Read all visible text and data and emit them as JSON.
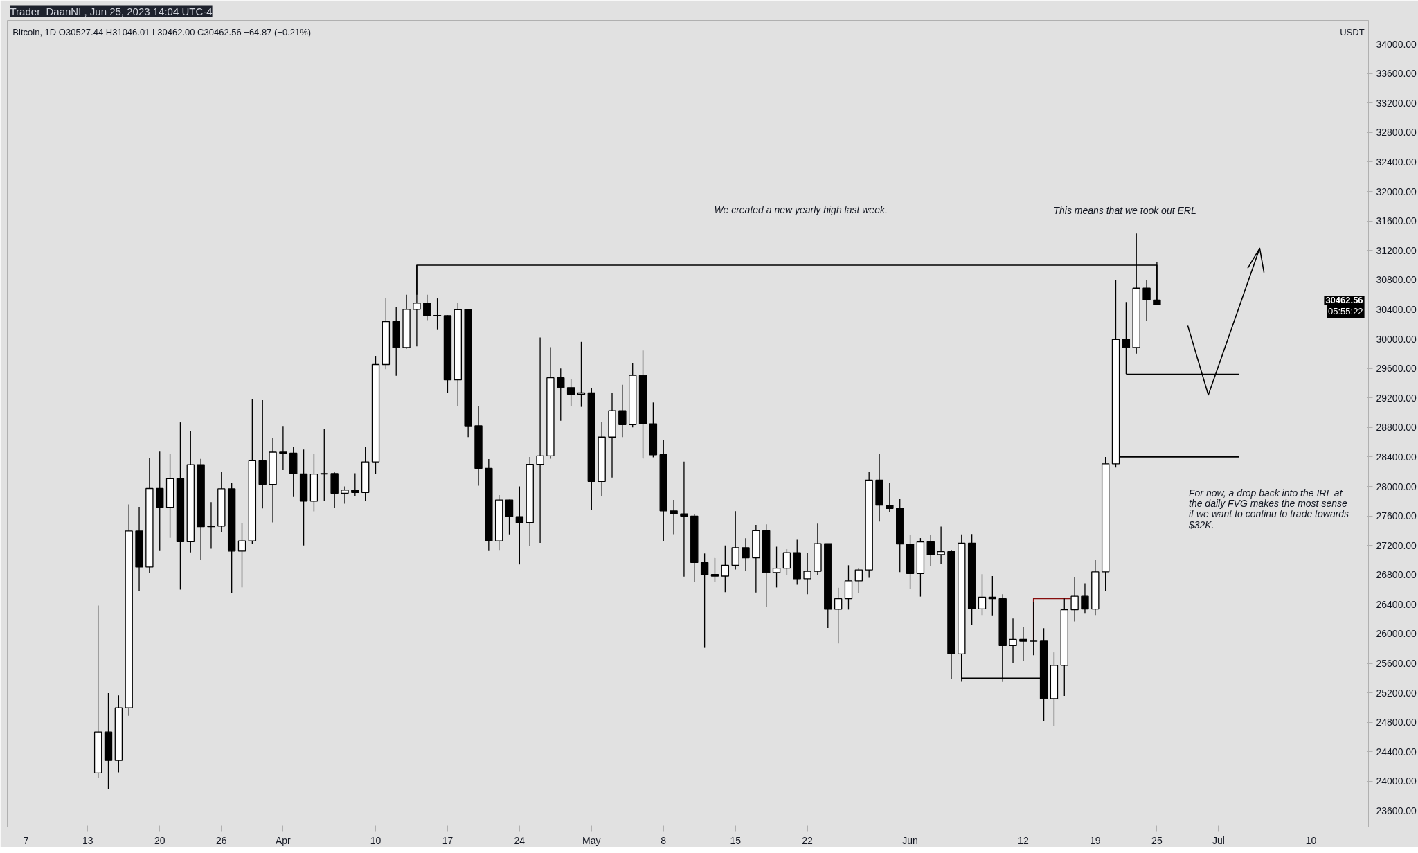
{
  "chart_data": {
    "type": "candlestick",
    "title": "Bitcoin, 1D  O30527.44  H31046.01  L30462.00  C30462.56  −64.87 (−0.21%)",
    "subtitle": "Trader_DaanNL, Jun 25, 2023 14:04 UTC-4",
    "ylabel": "USDT",
    "x": [
      "2023-03-14",
      "2023-03-15",
      "2023-03-16",
      "2023-03-17",
      "2023-03-18",
      "2023-03-19",
      "2023-03-20",
      "2023-03-21",
      "2023-03-22",
      "2023-03-23",
      "2023-03-24",
      "2023-03-25",
      "2023-03-26",
      "2023-03-27",
      "2023-03-28",
      "2023-03-29",
      "2023-03-30",
      "2023-03-31",
      "2023-04-01",
      "2023-04-02",
      "2023-04-03",
      "2023-04-04",
      "2023-04-05",
      "2023-04-06",
      "2023-04-07",
      "2023-04-08",
      "2023-04-09",
      "2023-04-10",
      "2023-04-11",
      "2023-04-12",
      "2023-04-13",
      "2023-04-14",
      "2023-04-15",
      "2023-04-16",
      "2023-04-17",
      "2023-04-18",
      "2023-04-19",
      "2023-04-20",
      "2023-04-21",
      "2023-04-22",
      "2023-04-23",
      "2023-04-24",
      "2023-04-25",
      "2023-04-26",
      "2023-04-27",
      "2023-04-28",
      "2023-04-29",
      "2023-04-30",
      "2023-05-01",
      "2023-05-02",
      "2023-05-03",
      "2023-05-04",
      "2023-05-05",
      "2023-05-06",
      "2023-05-07",
      "2023-05-08",
      "2023-05-09",
      "2023-05-10",
      "2023-05-11",
      "2023-05-12",
      "2023-05-13",
      "2023-05-14",
      "2023-05-15",
      "2023-05-16",
      "2023-05-17",
      "2023-05-18",
      "2023-05-19",
      "2023-05-20",
      "2023-05-21",
      "2023-05-22",
      "2023-05-23",
      "2023-05-24",
      "2023-05-25",
      "2023-05-26",
      "2023-05-27",
      "2023-05-28",
      "2023-05-29",
      "2023-05-30",
      "2023-05-31",
      "2023-06-01",
      "2023-06-02",
      "2023-06-03",
      "2023-06-04",
      "2023-06-05",
      "2023-06-06",
      "2023-06-07",
      "2023-06-08",
      "2023-06-09",
      "2023-06-10",
      "2023-06-11",
      "2023-06-12",
      "2023-06-13",
      "2023-06-14",
      "2023-06-15",
      "2023-06-16",
      "2023-06-17",
      "2023-06-18",
      "2023-06-19",
      "2023-06-20",
      "2023-06-21",
      "2023-06-22",
      "2023-06-23",
      "2023-06-24",
      "2023-06-25"
    ],
    "ohlc": [
      [
        24113,
        26386,
        24050,
        24670
      ],
      [
        24670,
        25196,
        23896,
        24285
      ],
      [
        24285,
        25167,
        24123,
        24998
      ],
      [
        24998,
        27756,
        24890,
        27395
      ],
      [
        27395,
        27724,
        26578,
        26907
      ],
      [
        26907,
        28390,
        26827,
        27972
      ],
      [
        27972,
        28472,
        27124,
        27717
      ],
      [
        27717,
        28438,
        27303,
        28105
      ],
      [
        28105,
        28868,
        26601,
        27250
      ],
      [
        27250,
        28752,
        27105,
        28295
      ],
      [
        28295,
        28374,
        27000,
        27454
      ],
      [
        27454,
        27787,
        27156,
        27462
      ],
      [
        27462,
        28194,
        27386,
        27968
      ],
      [
        27968,
        28044,
        26552,
        27124
      ],
      [
        27124,
        27500,
        26631,
        27261
      ],
      [
        27261,
        29184,
        27220,
        28348
      ],
      [
        28348,
        29170,
        27701,
        28028
      ],
      [
        28028,
        28656,
        27511,
        28465
      ],
      [
        28465,
        28819,
        28220,
        28452
      ],
      [
        28452,
        28530,
        27856,
        28171
      ],
      [
        28171,
        28500,
        27200,
        27800
      ],
      [
        27800,
        28444,
        27662,
        28168
      ],
      [
        28168,
        28775,
        27805,
        28175
      ],
      [
        28175,
        28190,
        27711,
        27907
      ],
      [
        27907,
        28000,
        27766,
        27950
      ],
      [
        27950,
        28178,
        27870,
        27917
      ],
      [
        27917,
        28530,
        27800,
        28333
      ],
      [
        28333,
        29770,
        28170,
        29653
      ],
      [
        29653,
        30550,
        29590,
        30235
      ],
      [
        30235,
        30436,
        29500,
        29884
      ],
      [
        29884,
        30600,
        29870,
        30400
      ],
      [
        30400,
        31000,
        29900,
        30485
      ],
      [
        30485,
        30600,
        30253,
        30318
      ],
      [
        30318,
        30549,
        30130,
        30315
      ],
      [
        30315,
        30320,
        29266,
        29445
      ],
      [
        29445,
        30485,
        29087,
        30397
      ],
      [
        30397,
        30410,
        28669,
        28822
      ],
      [
        28822,
        29095,
        28010,
        28245
      ],
      [
        28245,
        28371,
        27125,
        27262
      ],
      [
        27262,
        27882,
        27130,
        27816
      ],
      [
        27816,
        27820,
        27350,
        27590
      ],
      [
        27590,
        28000,
        26942,
        27510
      ],
      [
        27510,
        28400,
        27192,
        28300
      ],
      [
        28300,
        30020,
        27235,
        28415
      ],
      [
        28415,
        29887,
        28375,
        29473
      ],
      [
        29473,
        29599,
        28891,
        29340
      ],
      [
        29340,
        29460,
        29088,
        29249
      ],
      [
        29249,
        29960,
        29079,
        29268
      ],
      [
        29268,
        29338,
        27680,
        28068
      ],
      [
        28068,
        28879,
        27872,
        28669
      ],
      [
        28669,
        29266,
        28119,
        29026
      ],
      [
        29026,
        29379,
        28669,
        28838
      ],
      [
        28838,
        29677,
        28800,
        29506
      ],
      [
        29506,
        29843,
        28378,
        28849
      ],
      [
        28849,
        29138,
        28395,
        28430
      ],
      [
        28430,
        28631,
        27262,
        27668
      ],
      [
        27668,
        27818,
        27353,
        27628
      ],
      [
        27628,
        28336,
        26777,
        27598
      ],
      [
        27598,
        27630,
        26702,
        26968
      ],
      [
        26968,
        27091,
        25811,
        26805
      ],
      [
        26805,
        27030,
        26700,
        26784
      ],
      [
        26784,
        27200,
        26566,
        26930
      ],
      [
        26930,
        27664,
        26874,
        27170
      ],
      [
        27170,
        27299,
        26852,
        27033
      ],
      [
        27033,
        27480,
        26560,
        27400
      ],
      [
        27400,
        27485,
        26361,
        26832
      ],
      [
        26832,
        27183,
        26630,
        26890
      ],
      [
        26890,
        27150,
        26800,
        27102
      ],
      [
        27102,
        27277,
        26666,
        26747
      ],
      [
        26747,
        27099,
        26538,
        26849
      ],
      [
        26849,
        27495,
        26798,
        27225
      ],
      [
        27225,
        27225,
        26080,
        26334
      ],
      [
        26334,
        26626,
        25871,
        26477
      ],
      [
        26477,
        26931,
        26330,
        26719
      ],
      [
        26719,
        26888,
        26554,
        26868
      ],
      [
        26868,
        28193,
        26760,
        28085
      ],
      [
        28085,
        28447,
        27524,
        27745
      ],
      [
        27745,
        28046,
        27655,
        27702
      ],
      [
        27702,
        27835,
        26839,
        27219
      ],
      [
        27219,
        27346,
        26605,
        26819
      ],
      [
        26819,
        27300,
        26506,
        27249
      ],
      [
        27249,
        27342,
        26916,
        27075
      ],
      [
        27075,
        27455,
        26951,
        27116
      ],
      [
        27116,
        27133,
        25388,
        25729
      ],
      [
        25729,
        27350,
        25351,
        27230
      ],
      [
        27230,
        27355,
        26118,
        26339
      ],
      [
        26339,
        26810,
        26256,
        26498
      ],
      [
        26498,
        26783,
        26251,
        26477
      ],
      [
        26477,
        26538,
        25350,
        25841
      ],
      [
        25841,
        26210,
        25607,
        25925
      ],
      [
        25925,
        26099,
        25638,
        25901
      ],
      [
        25901,
        26433,
        25712,
        25902
      ],
      [
        25902,
        26077,
        24820,
        25123
      ],
      [
        25123,
        25750,
        24756,
        25575
      ],
      [
        25575,
        26478,
        25160,
        26327
      ],
      [
        26327,
        26769,
        26170,
        26510
      ],
      [
        26510,
        26686,
        26275,
        26336
      ],
      [
        26336,
        27000,
        26256,
        26841
      ],
      [
        26841,
        28400,
        26586,
        28307
      ],
      [
        28307,
        30800,
        28257,
        29993
      ],
      [
        29993,
        30500,
        29525,
        29884
      ],
      [
        29884,
        31431,
        29800,
        30688
      ],
      [
        30688,
        30800,
        30250,
        30527
      ],
      [
        30527.44,
        31046.01,
        30462.0,
        30462.56
      ]
    ],
    "series": [
      {
        "type": "line",
        "color": "#000000",
        "x": [
          "2023-04-14",
          "2023-04-14",
          "2023-06-25",
          "2023-06-25"
        ],
        "values": [
          30600,
          31000,
          31000,
          30530
        ]
      },
      {
        "type": "line",
        "color": "#000000",
        "x": [
          "2023-06-22",
          "2023-07-03"
        ],
        "values": [
          29520,
          29520
        ]
      },
      {
        "type": "line",
        "color": "#000000",
        "x": [
          "2023-06-21T09:00",
          "2023-07-03"
        ],
        "values": [
          28400,
          28400
        ]
      },
      {
        "type": "line",
        "color": "#000000",
        "x": [
          "2023-06-06",
          "2023-06-06",
          "2023-06-10",
          "2023-06-10",
          "2023-06-10",
          "2023-06-13T15:00"
        ],
        "values": [
          25730,
          25400,
          25400,
          25840,
          25400,
          25400
        ]
      },
      {
        "type": "line",
        "color": "#880e0e",
        "x": [
          "2023-06-13",
          "2023-06-13",
          "2023-06-16T15:00"
        ],
        "values": [
          25900,
          26480,
          26480
        ]
      },
      {
        "type": "line",
        "color": "#000000",
        "x": [
          "2023-06-28",
          "2023-06-30",
          "2023-07-05"
        ],
        "values": [
          30180,
          29240,
          31230
        ]
      },
      {
        "type": "line",
        "color": "#000000",
        "x": [
          "2023-07-03T20:00",
          "2023-07-05",
          "2023-07-05T10:00"
        ],
        "values": [
          30960,
          31230,
          30900
        ]
      }
    ],
    "annotations": [
      "We created a new yearly high last week.",
      "This means that we took out ERL",
      "For now, a drop back into the IRL at\nthe daily FVG makes the most sense\nif we want to continu to trade towards\n$32K.",
      "30462.56",
      "05:55:22"
    ],
    "xlim": [
      "2023-03-05T04:00",
      "2023-07-15T14:00"
    ],
    "xticks": [
      {
        "value": "2023-03-07",
        "label": "7"
      },
      {
        "value": "2023-03-13",
        "label": "13"
      },
      {
        "value": "2023-03-20",
        "label": "20"
      },
      {
        "value": "2023-03-26",
        "label": "26"
      },
      {
        "value": "2023-04-01",
        "label": "Apr"
      },
      {
        "value": "2023-04-10",
        "label": "10"
      },
      {
        "value": "2023-04-17",
        "label": "17"
      },
      {
        "value": "2023-04-24",
        "label": "24"
      },
      {
        "value": "2023-05-01",
        "label": "May"
      },
      {
        "value": "2023-05-08",
        "label": "8"
      },
      {
        "value": "2023-05-15",
        "label": "15"
      },
      {
        "value": "2023-05-22",
        "label": "22"
      },
      {
        "value": "2023-06-01",
        "label": "Jun"
      },
      {
        "value": "2023-06-12",
        "label": "12"
      },
      {
        "value": "2023-06-19",
        "label": "19"
      },
      {
        "value": "2023-06-25",
        "label": "25"
      },
      {
        "value": "2023-07-01",
        "label": "Jul"
      },
      {
        "value": "2023-07-10",
        "label": "10"
      }
    ],
    "ylim": [
      23380,
      34320
    ],
    "yticks": [
      {
        "value": 23600,
        "label": "23600.00"
      },
      {
        "value": 24000,
        "label": "24000.00"
      },
      {
        "value": 24400,
        "label": "24400.00"
      },
      {
        "value": 24800,
        "label": "24800.00"
      },
      {
        "value": 25200,
        "label": "25200.00"
      },
      {
        "value": 25600,
        "label": "25600.00"
      },
      {
        "value": 26000,
        "label": "26000.00"
      },
      {
        "value": 26400,
        "label": "26400.00"
      },
      {
        "value": 26800,
        "label": "26800.00"
      },
      {
        "value": 27200,
        "label": "27200.00"
      },
      {
        "value": 27600,
        "label": "27600.00"
      },
      {
        "value": 28000,
        "label": "28000.00"
      },
      {
        "value": 28400,
        "label": "28400.00"
      },
      {
        "value": 28800,
        "label": "28800.00"
      },
      {
        "value": 29200,
        "label": "29200.00"
      },
      {
        "value": 29600,
        "label": "29600.00"
      },
      {
        "value": 30000,
        "label": "30000.00"
      },
      {
        "value": 30400,
        "label": "30400.00"
      },
      {
        "value": 30800,
        "label": "30800.00"
      },
      {
        "value": 31200,
        "label": "31200.00"
      },
      {
        "value": 31600,
        "label": "31600.00"
      },
      {
        "value": 32000,
        "label": "32000.00"
      },
      {
        "value": 32400,
        "label": "32400.00"
      },
      {
        "value": 32800,
        "label": "32800.00"
      },
      {
        "value": 33200,
        "label": "33200.00"
      },
      {
        "value": 33600,
        "label": "33600.00"
      },
      {
        "value": 34000,
        "label": "34000.00"
      }
    ]
  }
}
